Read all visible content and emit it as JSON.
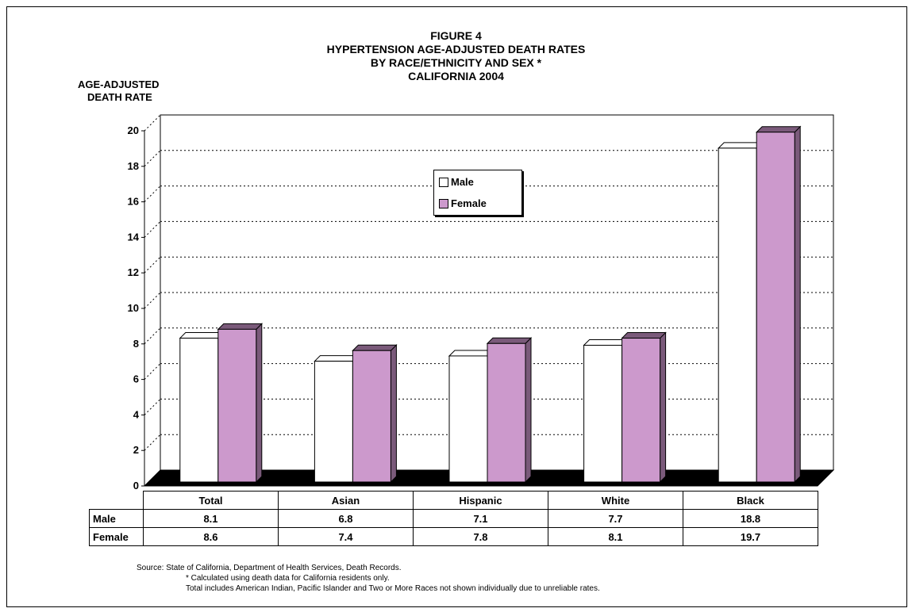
{
  "title": {
    "line1": "FIGURE 4",
    "line2": "HYPERTENSION AGE-ADJUSTED DEATH RATES",
    "line3": "BY RACE/ETHNICITY AND SEX *",
    "line4": "CALIFORNIA 2004"
  },
  "ylabel": {
    "line1": "AGE-ADJUSTED",
    "line2": "DEATH RATE"
  },
  "legend": {
    "male": "Male",
    "female": "Female"
  },
  "colors": {
    "male": "#ffffff",
    "female": "#cc99cc",
    "female_side": "#7a5a7a",
    "male_side": "#bbbbbb",
    "floor": "#000000"
  },
  "chart_data": {
    "type": "bar",
    "categories": [
      "Total",
      "Asian",
      "Hispanic",
      "White",
      "Black"
    ],
    "series": [
      {
        "name": "Male",
        "values": [
          8.1,
          6.8,
          7.1,
          7.7,
          18.8
        ]
      },
      {
        "name": "Female",
        "values": [
          8.6,
          7.4,
          7.8,
          8.1,
          19.7
        ]
      }
    ],
    "ylim": [
      0,
      20
    ],
    "yticks": [
      "0",
      "2",
      "4",
      "6",
      "8",
      "10",
      "12",
      "14",
      "16",
      "18",
      "20"
    ],
    "grid": true,
    "legend_position": "upper-center"
  },
  "table": {
    "headers": [
      "Total",
      "Asian",
      "Hispanic",
      "White",
      "Black"
    ],
    "rows": [
      {
        "label": "Male",
        "cells": [
          "8.1",
          "6.8",
          "7.1",
          "7.7",
          "18.8"
        ]
      },
      {
        "label": "Female",
        "cells": [
          "8.6",
          "7.4",
          "7.8",
          "8.1",
          "19.7"
        ]
      }
    ]
  },
  "notes": {
    "source": "Source:  State of California, Department of Health Services, Death Records.",
    "note1": "*  Calculated using death data for California residents only.",
    "note2": "Total includes American Indian, Pacific Islander and Two or More Races not shown individually due to unreliable rates."
  }
}
